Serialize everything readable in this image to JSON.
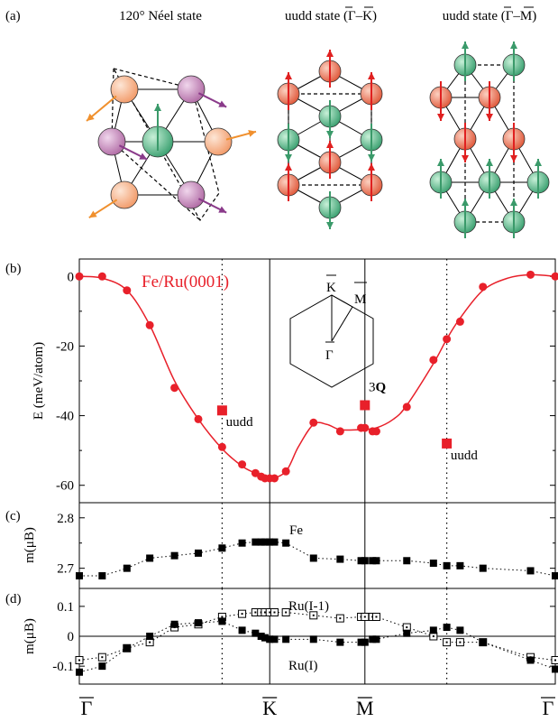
{
  "panel_a": {
    "label": "(a)",
    "titles": [
      "120° Néel state",
      "uudd state (Γ–K)",
      "uudd state (Γ–M)"
    ]
  },
  "panel_labels": {
    "b": "(b)",
    "c": "(c)",
    "d": "(d)"
  },
  "colors": {
    "red": "#e8202a",
    "sphere_orange": "#f7b48a",
    "sphere_purple": "#c488b8",
    "sphere_green": "#5cb88a",
    "sphere_red": "#ee7f5f",
    "arrow_orange": "#f0902e",
    "arrow_purple": "#8a3a8a",
    "arrow_green": "#3a9a6a",
    "arrow_red": "#e02020"
  },
  "chart_data": [
    {
      "panel": "b",
      "type": "line",
      "title": "Fe/Ru(0001)",
      "ylabel": "E (meV/atom)",
      "ylim": [
        -65,
        5
      ],
      "yticks": [
        0,
        -20,
        -40,
        -60
      ],
      "xlabels": [
        "Γ",
        "K",
        "M",
        "Γ"
      ],
      "xlabel_positions": [
        0,
        1,
        1.5,
        2.5
      ],
      "xlim": [
        0,
        2.5
      ],
      "series": [
        {
          "kind": "points",
          "x": [
            0,
            0.12,
            0.25,
            0.37,
            0.5,
            0.625,
            0.75,
            0.855,
            0.925,
            0.955,
            0.975,
            1.0,
            1.025,
            1.085,
            1.23,
            1.37,
            1.48,
            1.5,
            1.54,
            1.56,
            1.72,
            1.86,
            1.93,
            2.0,
            2.12,
            2.37,
            2.5
          ],
          "y": [
            0,
            0,
            -4,
            -14,
            -32,
            -41,
            -49,
            -54,
            -56.5,
            -57.5,
            -58,
            -58,
            -58,
            -56,
            -42,
            -44.5,
            -43.5,
            -43.5,
            -44.5,
            -44.5,
            -37.5,
            -24,
            -18,
            -13,
            -3,
            0.5,
            0
          ]
        },
        {
          "kind": "fit",
          "x": [
            0,
            0.12,
            0.25,
            0.37,
            0.5,
            0.625,
            0.75,
            0.855,
            0.925,
            1.0,
            1.085,
            1.15,
            1.23,
            1.3,
            1.37,
            1.48,
            1.56,
            1.65,
            1.72,
            1.86,
            1.93,
            2.0,
            2.12,
            2.25,
            2.37,
            2.5
          ],
          "y": [
            0,
            -0.5,
            -4,
            -14,
            -30,
            -41,
            -49.5,
            -54.5,
            -56.5,
            -58,
            -56,
            -49,
            -42.5,
            -42.5,
            -44,
            -44,
            -43.5,
            -41,
            -37,
            -25,
            -18,
            -12,
            -4,
            -0.5,
            0.5,
            0
          ]
        },
        {
          "kind": "special",
          "x": [
            0.75,
            1.5,
            1.93
          ],
          "y": [
            -38.5,
            -37,
            -48
          ]
        }
      ],
      "annotations": [
        {
          "text": "uudd",
          "x": 0.77,
          "y": -43
        },
        {
          "text": "3",
          "bold_part": "Q",
          "x": 1.52,
          "y": -33
        },
        {
          "text": "uudd",
          "x": 1.95,
          "y": -52.5
        }
      ],
      "inset_labels": [
        "K",
        "M",
        "Γ"
      ]
    },
    {
      "panel": "c",
      "type": "scatter",
      "ylabel": "m(μB)",
      "ylim": [
        2.66,
        2.83
      ],
      "yticks": [
        2.7,
        2.8
      ],
      "label": "Fe",
      "x": [
        0,
        0.12,
        0.25,
        0.37,
        0.5,
        0.625,
        0.75,
        0.855,
        0.925,
        0.955,
        0.975,
        1.0,
        1.025,
        1.085,
        1.23,
        1.37,
        1.48,
        1.5,
        1.54,
        1.56,
        1.72,
        1.86,
        1.93,
        2.0,
        2.12,
        2.37,
        2.5
      ],
      "y": [
        2.685,
        2.685,
        2.7,
        2.72,
        2.725,
        2.73,
        2.74,
        2.75,
        2.752,
        2.752,
        2.752,
        2.752,
        2.752,
        2.75,
        2.72,
        2.718,
        2.715,
        2.715,
        2.715,
        2.715,
        2.715,
        2.71,
        2.705,
        2.705,
        2.7,
        2.695,
        2.685
      ]
    },
    {
      "panel": "d",
      "type": "scatter",
      "ylabel": "m(μB)",
      "ylim": [
        -0.16,
        0.16
      ],
      "yticks": [
        0.1,
        0,
        -0.1
      ],
      "series": [
        {
          "name": "Ru(I-1)",
          "marker": "open",
          "x": [
            0,
            0.12,
            0.25,
            0.37,
            0.5,
            0.625,
            0.75,
            0.855,
            0.925,
            0.955,
            0.975,
            1.0,
            1.025,
            1.085,
            1.23,
            1.37,
            1.48,
            1.5,
            1.54,
            1.56,
            1.72,
            1.86,
            1.93,
            2.0,
            2.12,
            2.37,
            2.5
          ],
          "y": [
            -0.08,
            -0.07,
            -0.04,
            -0.02,
            0.03,
            0.04,
            0.065,
            0.075,
            0.08,
            0.08,
            0.08,
            0.08,
            0.08,
            0.08,
            0.07,
            0.06,
            0.065,
            0.065,
            0.065,
            0.065,
            0.03,
            0.0,
            -0.02,
            -0.02,
            -0.02,
            -0.07,
            -0.08
          ]
        },
        {
          "name": "Ru(I)",
          "marker": "filled",
          "x": [
            0,
            0.12,
            0.25,
            0.37,
            0.5,
            0.625,
            0.75,
            0.855,
            0.925,
            0.955,
            0.975,
            1.0,
            1.025,
            1.085,
            1.23,
            1.37,
            1.48,
            1.5,
            1.54,
            1.56,
            1.72,
            1.86,
            1.93,
            2.0,
            2.12,
            2.37,
            2.5
          ],
          "y": [
            -0.12,
            -0.1,
            -0.04,
            0.0,
            0.04,
            0.045,
            0.05,
            0.02,
            0.01,
            0.0,
            -0.005,
            -0.01,
            -0.01,
            -0.01,
            -0.01,
            -0.02,
            -0.02,
            -0.02,
            -0.01,
            -0.01,
            0.01,
            0.02,
            0.03,
            0.02,
            -0.02,
            -0.08,
            -0.11
          ]
        }
      ]
    }
  ]
}
